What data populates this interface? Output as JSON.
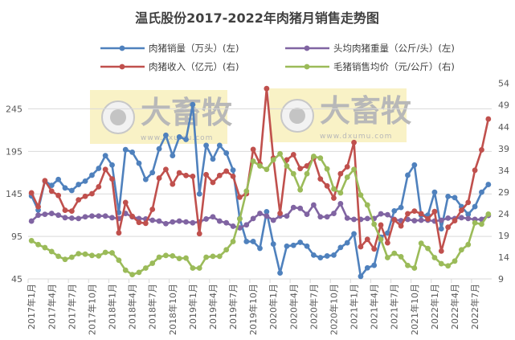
{
  "chart_data": {
    "type": "line",
    "title": "温氏股份2017-2022年肉猪月销售走势图",
    "x": [
      "2017-01",
      "2017-02",
      "2017-03",
      "2017-04",
      "2017-05",
      "2017-06",
      "2017-07",
      "2017-08",
      "2017-09",
      "2017-10",
      "2017-11",
      "2017-12",
      "2018-01",
      "2018-02",
      "2018-03",
      "2018-04",
      "2018-05",
      "2018-06",
      "2018-07",
      "2018-08",
      "2018-09",
      "2018-10",
      "2018-11",
      "2018-12",
      "2019-01",
      "2019-02",
      "2019-03",
      "2019-04",
      "2019-05",
      "2019-06",
      "2019-07",
      "2019-08",
      "2019-09",
      "2019-10",
      "2019-11",
      "2019-12",
      "2020-01",
      "2020-02",
      "2020-03",
      "2020-04",
      "2020-05",
      "2020-06",
      "2020-07",
      "2020-08",
      "2020-09",
      "2020-10",
      "2020-11",
      "2020-12",
      "2021-01",
      "2021-02",
      "2021-03",
      "2021-04",
      "2021-05",
      "2021-06",
      "2021-07",
      "2021-08",
      "2021-09",
      "2021-10",
      "2021-11",
      "2021-12",
      "2022-01",
      "2022-02",
      "2022-03",
      "2022-04",
      "2022-05",
      "2022-06",
      "2022-07",
      "2022-08",
      "2022-09"
    ],
    "tick_labels": [
      "2017年1月",
      "2017年4月",
      "2017年7月",
      "2017年10月",
      "2018年1月",
      "2018年4月",
      "2018年7月",
      "2018年10月",
      "2019年1月",
      "2019年4月",
      "2019年7月",
      "2019年10月",
      "2020年1月",
      "2020年4月",
      "2020年7月",
      "2020年10月",
      "2021年1月",
      "2021年4月",
      "2021年7月",
      "2021年10月",
      "2022年1月",
      "2022年4月",
      "2022年7月"
    ],
    "y_left": {
      "range": [
        45,
        275
      ],
      "ticks": [
        45,
        95,
        145,
        195,
        245
      ]
    },
    "y_right": {
      "range": [
        9,
        54
      ],
      "ticks": [
        9,
        14,
        19,
        24,
        29,
        34,
        39,
        44,
        49,
        54
      ]
    },
    "grid": true,
    "legend_placement": "top",
    "series": [
      {
        "name": "肉猪销量（万头）(左)",
        "axis": "left",
        "color": "#4f81bd",
        "values": [
          142.6,
          126,
          160,
          155,
          162,
          152,
          149,
          156,
          160,
          167,
          175,
          190,
          179,
          123,
          197,
          194,
          181,
          162,
          170,
          198,
          214,
          190,
          212,
          209,
          250,
          145,
          202,
          186,
          202,
          193,
          173,
          116,
          89,
          89,
          81,
          124,
          86,
          52,
          83.5,
          84.5,
          88,
          83.5,
          73,
          70,
          72,
          73,
          82,
          87.5,
          98,
          48,
          58,
          61,
          94,
          99,
          125,
          129,
          167,
          179,
          120,
          120,
          147,
          104,
          142,
          140.6,
          130,
          121,
          130,
          147,
          156
        ]
      },
      {
        "name": "头均肉猪重量（公斤/头）(左)",
        "axis": "left",
        "color": "#8064a2",
        "values": [
          113,
          120,
          121,
          122,
          120,
          117,
          116.5,
          116,
          118,
          119,
          119,
          119,
          117,
          116,
          122,
          118,
          116,
          115.5,
          114,
          113,
          110,
          112,
          113,
          112,
          111,
          112,
          115.5,
          118,
          113,
          111,
          107,
          105,
          108.6,
          116,
          122,
          119,
          114,
          119,
          119,
          129,
          128,
          121,
          132,
          118,
          118,
          122,
          133.5,
          116.5,
          115,
          115,
          116,
          116,
          121.5,
          120.5,
          115,
          113.5,
          115,
          113.5,
          114,
          114,
          113,
          114,
          116.5,
          116,
          117,
          116,
          115,
          115,
          119.6
        ]
      },
      {
        "name": "肉猪收入（亿元）(右)",
        "axis": "right",
        "color": "#c0504d",
        "values": [
          28.8,
          25.6,
          31.6,
          29.2,
          28.2,
          24.8,
          24.6,
          27.2,
          28.0,
          28.6,
          30.2,
          34.2,
          32.0,
          19.6,
          26.6,
          23.4,
          22.0,
          21.8,
          25.0,
          32.2,
          34.2,
          30.8,
          33.4,
          32.8,
          32.6,
          19.4,
          33.0,
          31.2,
          32.8,
          33.8,
          32.6,
          27.8,
          28.6,
          38.8,
          35.5,
          52.8,
          36.8,
          24.1,
          36.4,
          37.6,
          34.4,
          35.0,
          36.8,
          32.0,
          30.4,
          27.6,
          33.2,
          34.8,
          40.4,
          16.4,
          18.1,
          15.9,
          21.4,
          17.3,
          22.6,
          21.2,
          24.0,
          24.6,
          24.0,
          22.8,
          24.5,
          15.4,
          20.9,
          22.4,
          24.8,
          26.6,
          34.0,
          38.7,
          45.8
        ]
      },
      {
        "name": "毛猪销售均价（元/公斤）(右)",
        "axis": "right",
        "color": "#9bbb59",
        "values": [
          17.8,
          16.9,
          16.2,
          15.3,
          14.2,
          13.5,
          14.0,
          14.8,
          14.7,
          14.4,
          14.3,
          15.1,
          15.0,
          13.3,
          11.0,
          10.0,
          10.5,
          11.5,
          12.6,
          14.0,
          14.4,
          14.3,
          13.7,
          13.8,
          11.5,
          11.5,
          14.0,
          14.2,
          14.2,
          15.7,
          17.6,
          22.8,
          29.2,
          36.1,
          35.0,
          34.2,
          36.4,
          37.8,
          35.0,
          33.2,
          29.5,
          33.2,
          37.2,
          36.8,
          34.3,
          29.7,
          28.8,
          32.4,
          34.2,
          28.3,
          26.0,
          21.6,
          18.1,
          13.9,
          14.9,
          14.1,
          12.1,
          11.5,
          17.2,
          16.0,
          13.9,
          12.5,
          12.0,
          13.1,
          15.7,
          16.9,
          21.9,
          21.6,
          23.9
        ]
      }
    ]
  },
  "watermark": {
    "brand": "大畜牧",
    "url": "www.dxumu.com"
  }
}
